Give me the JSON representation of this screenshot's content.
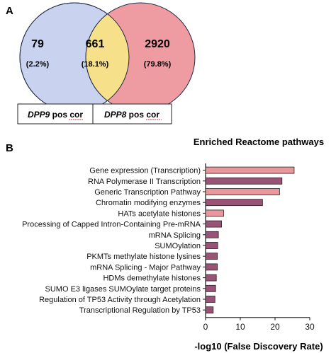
{
  "panel_a": {
    "label": "A",
    "venn": {
      "left": {
        "count": "79",
        "percent": "(2.2%)",
        "color": "#c9d3ef"
      },
      "overlap": {
        "count": "661",
        "percent": "(18.1%)",
        "color": "#f7e08a"
      },
      "right": {
        "count": "2920",
        "percent": "(79.8%)",
        "color": "#ee9ba1"
      },
      "left_box": {
        "gene": "DPP9",
        "suffix": " pos cor"
      },
      "right_box": {
        "gene": "DPP8",
        "suffix": " pos cor"
      }
    }
  },
  "panel_b": {
    "label": "B"
  },
  "chart_data": {
    "type": "bar",
    "orientation": "horizontal",
    "title": "Enriched Reactome pathways",
    "xlabel": "-log10 (False Discovery Rate)",
    "ylabel": "",
    "xlim": [
      0,
      30
    ],
    "xticks": [
      "0",
      "10",
      "20",
      "30"
    ],
    "categories": [
      "Gene expression (Transcription)",
      "RNA Polymerase II Transcription",
      "Generic Transcription Pathway",
      "Chromatin modifying enzymes",
      "HATs acetylate histones",
      "Processing of Capped Intron-Containing Pre-mRNA",
      "mRNA Splicing",
      "SUMOylation",
      "PKMTs methylate histone lysines",
      "mRNA Splicing - Major Pathway",
      "HDMs demethylate histones",
      "SUMO E3 ligases SUMOylate target proteins",
      "Regulation of TP53 Activity through Acetylation",
      "Transcriptional Regulation by TP53"
    ],
    "values": [
      25.5,
      22.0,
      21.3,
      16.4,
      5.2,
      4.6,
      3.7,
      3.5,
      3.4,
      3.4,
      3.1,
      2.9,
      2.7,
      2.2
    ],
    "bar_colors": [
      "#e8979c",
      "#9a5376",
      "#e8979c",
      "#9a5376",
      "#e8979c",
      "#9a5376",
      "#9a5376",
      "#9a5376",
      "#9a5376",
      "#9a5376",
      "#9a5376",
      "#9a5376",
      "#9a5376",
      "#9a5376"
    ],
    "grid": false
  }
}
